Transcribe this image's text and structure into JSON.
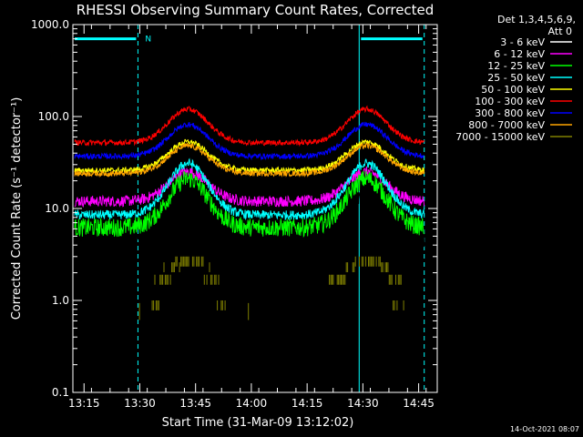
{
  "title": "RHESSI Observing Summary Count Rates, Corrected",
  "footer_date": "14-Oct-2021 08:07",
  "legend_header": [
    "Det 1,3,4,5,6,9,",
    "Att 0"
  ],
  "flag_label": "N",
  "colors": {
    "background": "#000000",
    "axes": "#ffffff",
    "marker": "#00ffff"
  },
  "chart_data": {
    "type": "line",
    "title": "RHESSI Observing Summary Count Rates, Corrected",
    "xlabel": "Start Time (31-Mar-09 13:12:02)",
    "ylabel": "Corrected Count Rate (s⁻¹ detector⁻¹)",
    "yscale": "log",
    "xlim_minutes": [
      0,
      98
    ],
    "ylim": [
      0.1,
      1000
    ],
    "x_tick_minutes": [
      3,
      18,
      33,
      48,
      63,
      78,
      93
    ],
    "x_tick_labels": [
      "13:15",
      "13:30",
      "13:45",
      "14:00",
      "14:15",
      "14:30",
      "14:45"
    ],
    "y_tick_values": [
      0.1,
      1,
      10,
      100,
      1000
    ],
    "y_tick_labels": [
      "0.1",
      "1.0",
      "10.0",
      "100.0",
      "1000.0"
    ],
    "grid": false,
    "legend": "right",
    "night_markers_minutes": [
      0,
      17.5,
      77,
      94.5
    ],
    "night_bars": [
      {
        "from_minutes": 0,
        "to_minutes": 17.5,
        "value": 700,
        "label": "N"
      },
      {
        "from_minutes": 77,
        "to_minutes": 94.5,
        "value": 700
      }
    ],
    "data_start_minutes": 0.5,
    "data_end_minutes": 94.5,
    "peak_minutes": [
      31,
      79
    ],
    "series": [
      {
        "name": "3 - 6 keV",
        "color": "#ffffff",
        "trace_color": "#000000",
        "baseline": 5.2,
        "peak": 16,
        "noise": 0.14
      },
      {
        "name": "6 - 12 keV",
        "color": "#ff00ff",
        "baseline": 12,
        "peak": 25,
        "noise": 0.06
      },
      {
        "name": "12 - 25 keV",
        "color": "#00ff00",
        "baseline": 6.2,
        "peak": 21,
        "noise": 0.1
      },
      {
        "name": "25 - 50 keV",
        "color": "#00ffff",
        "baseline": 8.5,
        "peak": 31,
        "noise": 0.05
      },
      {
        "name": "50 - 100 keV",
        "color": "#ffff00",
        "baseline": 26,
        "peak": 53,
        "noise": 0.03
      },
      {
        "name": "100 - 300 keV",
        "color": "#ff0000",
        "baseline": 52,
        "peak": 120,
        "noise": 0.03
      },
      {
        "name": "300 - 800 keV",
        "color": "#0000ff",
        "baseline": 37,
        "peak": 82,
        "noise": 0.03
      },
      {
        "name": "800 - 7000 keV",
        "color": "#ffa500",
        "baseline": 24,
        "peak": 48,
        "noise": 0.03
      },
      {
        "name": "7000 - 15000 keV",
        "color": "#808000",
        "baseline": 1,
        "peak": 3,
        "noise": 0.0,
        "sparse": true
      }
    ]
  }
}
